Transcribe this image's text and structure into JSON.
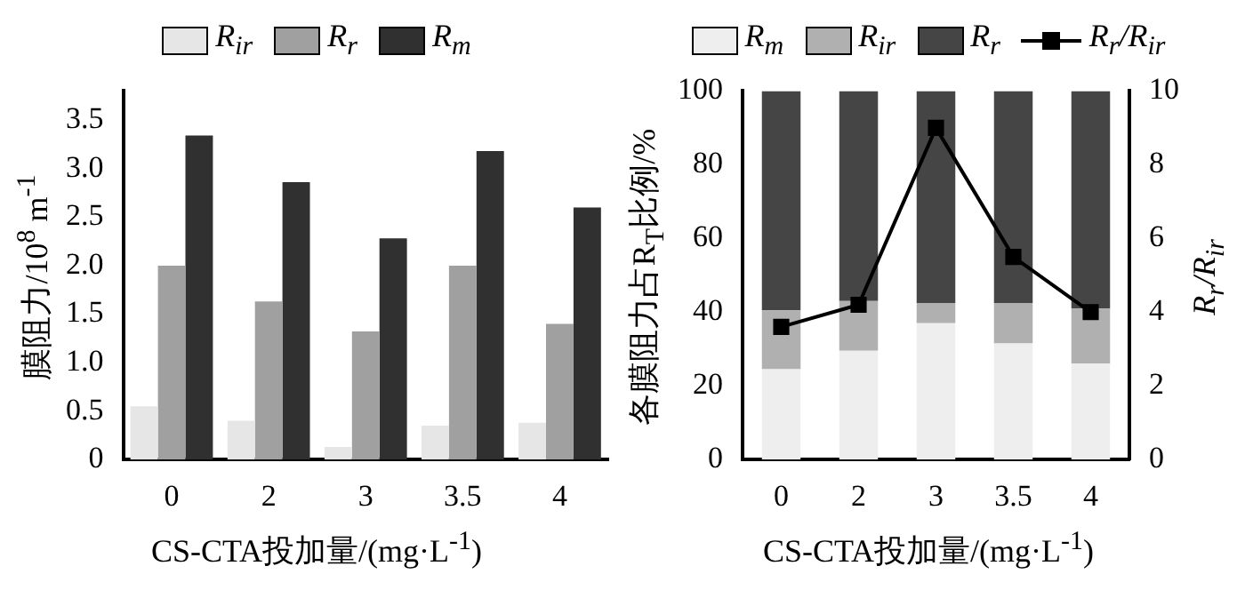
{
  "chart_data": [
    {
      "type": "bar",
      "xlabel": "CS-CTA投加量/(mg·L$^{-1}$)",
      "ylabel": "膜阻力/10$^{8}$ m$^{-1}$",
      "categories": [
        "0",
        "2",
        "3",
        "3.5",
        "4"
      ],
      "series": [
        {
          "name": "R$_{ir}$",
          "color": "#e6e6e6",
          "values": [
            0.55,
            0.4,
            0.13,
            0.35,
            0.38
          ]
        },
        {
          "name": "R$_{r}$",
          "color": "#a0a0a0",
          "values": [
            2.0,
            1.63,
            1.32,
            2.0,
            1.4
          ]
        },
        {
          "name": "R$_{m}$",
          "color": "#303030",
          "values": [
            3.34,
            2.86,
            2.28,
            3.18,
            2.6
          ]
        }
      ],
      "ylim": [
        0,
        3.8
      ],
      "yticks": [
        0,
        {
          "value": 0.5,
          "label": "0.5"
        },
        {
          "value": 1,
          "label": "1.0"
        },
        {
          "value": 1.5,
          "label": "1.5"
        },
        {
          "value": 2,
          "label": "2.0"
        },
        {
          "value": 2.5,
          "label": "2.5"
        },
        {
          "value": 3,
          "label": "3.0"
        },
        {
          "value": 3.5,
          "label": "3.5"
        }
      ],
      "grid": false,
      "legend": "top"
    },
    {
      "type": "bar",
      "stacked": true,
      "xlabel": "CS-CTA投加量/(mg·L$^{-1}$)",
      "ylabel": "各膜阻力占R$_{T}$比例/%",
      "y2label": "R$_{r}$/R$_{ir}$",
      "categories": [
        "0",
        "2",
        "3",
        "3.5",
        "4"
      ],
      "series": [
        {
          "name": "R$_{m}$",
          "color": "#eeeeee",
          "values": [
            24.5,
            29.5,
            37,
            31.5,
            26
          ]
        },
        {
          "name": "R$_{ir}$",
          "color": "#b0b0b0",
          "values": [
            16,
            13.5,
            5.5,
            11,
            15
          ]
        },
        {
          "name": "R$_{r}$",
          "color": "#454545",
          "values": [
            59.5,
            57,
            57.5,
            57.5,
            59
          ]
        },
        {
          "name": "R$_{r}$/R$_{ir}$",
          "type": "line",
          "axis": "y2",
          "color": "#000000",
          "values": [
            3.6,
            4.2,
            9.0,
            5.5,
            4.0
          ],
          "marker": "square",
          "line_style": "solid"
        }
      ],
      "ylim": [
        0,
        100
      ],
      "yticks": [
        0,
        20,
        40,
        60,
        80,
        100
      ],
      "y2lim": [
        0,
        10
      ],
      "y2ticks": [
        0,
        2,
        4,
        6,
        8,
        10
      ],
      "grid": false,
      "legend": "top"
    }
  ]
}
